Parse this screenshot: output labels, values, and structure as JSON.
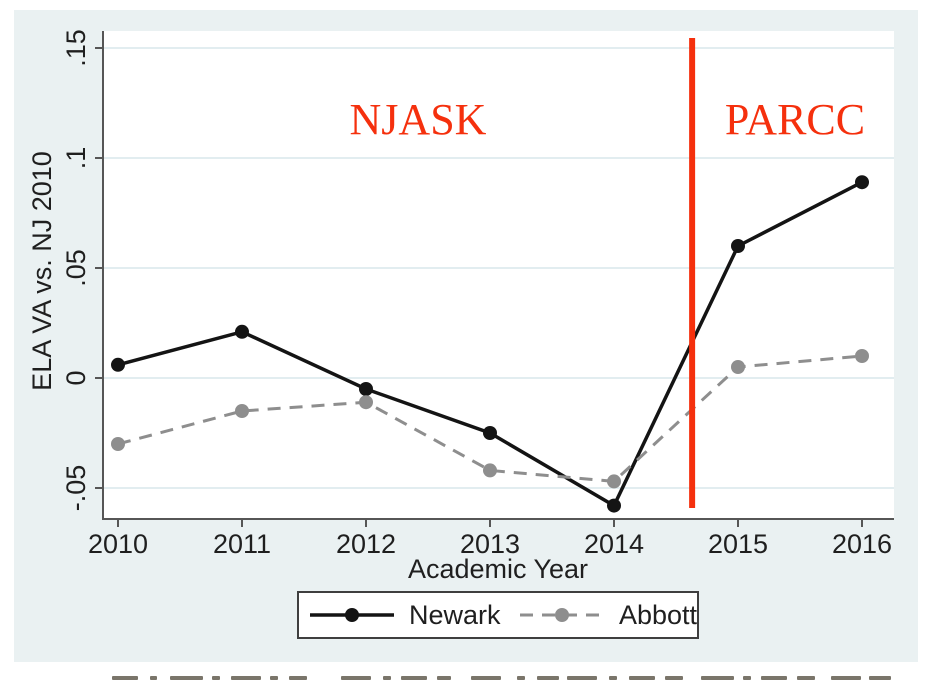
{
  "figure": {
    "background_color": "#eaf1f2",
    "plot_background_color": "#ffffff",
    "gridline_color": "#e2edf0",
    "axis_color": "#565656",
    "text_color": "#1f1f1f"
  },
  "chart_data": {
    "type": "line",
    "title": "",
    "x": [
      2010,
      2011,
      2012,
      2013,
      2014,
      2015,
      2016
    ],
    "series": [
      {
        "name": "Newark",
        "color": "#141414",
        "dash": null,
        "values": [
          0.006,
          0.021,
          -0.005,
          -0.025,
          -0.058,
          0.06,
          0.089
        ]
      },
      {
        "name": "Abbott",
        "color": "#8e8e8e",
        "dash": "13 9",
        "values": [
          -0.03,
          -0.015,
          -0.011,
          -0.042,
          -0.047,
          0.005,
          0.01
        ]
      }
    ],
    "xlabel": "Academic Year",
    "ylabel": "ELA VA vs. NJ 2010",
    "y_ticks": [
      {
        "label": ".15",
        "value": 0.15
      },
      {
        "label": ".1",
        "value": 0.1
      },
      {
        "label": ".05",
        "value": 0.05
      },
      {
        "label": "0",
        "value": 0.0
      },
      {
        "label": "-.05",
        "value": -0.05
      }
    ],
    "ylim": [
      -0.068,
      0.158
    ],
    "grid": true,
    "legend_position": "bottom",
    "vline": {
      "year": 2014.63,
      "color": "#f5300d"
    },
    "annotations": {
      "color": "#f5300d",
      "njask": {
        "text": "NJASK"
      },
      "parcc": {
        "text": "PARCC"
      }
    }
  }
}
